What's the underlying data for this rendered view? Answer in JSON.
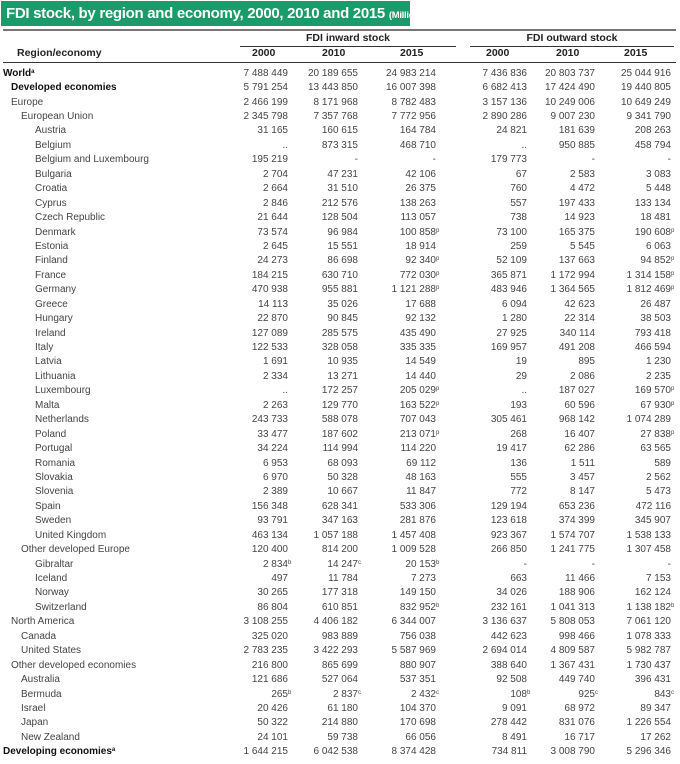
{
  "title": {
    "main": "FDI stock, by region and economy, 2000, 2010 and 2015",
    "unit": "(Millions of dollars)"
  },
  "header": {
    "region_label": "Region/economy",
    "inward_label": "FDI inward stock",
    "outward_label": "FDI outward stock",
    "years": [
      "2000",
      "2010",
      "2015",
      "2000",
      "2010",
      "2015"
    ]
  },
  "rows": [
    {
      "l": "World",
      "ls": "a",
      "d": 0,
      "b": true,
      "v": [
        "7 488 449",
        "20 189 655",
        "24 983 214",
        "7 436 836",
        "20 803 737",
        "25 044 916"
      ]
    },
    {
      "l": "Developed economies",
      "d": 1,
      "b": true,
      "v": [
        "5 791 254",
        "13 443 850",
        "16 007 398",
        "6 682 413",
        "17 424 490",
        "19 440 805"
      ]
    },
    {
      "l": "Europe",
      "d": 1,
      "v": [
        "2 466 199",
        "8 171 968",
        "8 782 483",
        "3 157 136",
        "10 249 006",
        "10 649 249"
      ]
    },
    {
      "l": "European Union",
      "d": 2,
      "v": [
        "2 345 798",
        "7 357 768",
        "7 772 956",
        "2 890 286",
        "9 007 230",
        "9 341 790"
      ]
    },
    {
      "l": "Austria",
      "d": 3,
      "v": [
        "31 165",
        "160 615",
        "164 784",
        "24 821",
        "181 639",
        "208 263"
      ]
    },
    {
      "l": "Belgium",
      "d": 3,
      "v": [
        "..",
        "873 315",
        "468 710",
        "..",
        "950 885",
        "458 794"
      ]
    },
    {
      "l": "Belgium and Luxembourg",
      "d": 3,
      "v": [
        "195 219",
        "-",
        "-",
        "179 773",
        "-",
        "-"
      ]
    },
    {
      "l": "Bulgaria",
      "d": 3,
      "v": [
        "2 704",
        "47 231",
        "42 106",
        "67",
        "2 583",
        "3 083"
      ]
    },
    {
      "l": "Croatia",
      "d": 3,
      "v": [
        "2 664",
        "31 510",
        "26 375",
        "760",
        "4 472",
        "5 448"
      ]
    },
    {
      "l": "Cyprus",
      "d": 3,
      "v": [
        "2 846",
        "212 576",
        "138 263",
        "557",
        "197 433",
        "133 134"
      ]
    },
    {
      "l": "Czech Republic",
      "d": 3,
      "v": [
        "21 644",
        "128 504",
        "113 057",
        "738",
        "14 923",
        "18 481"
      ]
    },
    {
      "l": "Denmark",
      "d": 3,
      "v": [
        "73 574",
        "96 984",
        "100 858",
        "73 100",
        "165 375",
        "190 608"
      ],
      "s": [
        "",
        "",
        "p",
        "",
        "",
        "p"
      ]
    },
    {
      "l": "Estonia",
      "d": 3,
      "v": [
        "2 645",
        "15 551",
        "18 914",
        "259",
        "5 545",
        "6 063"
      ]
    },
    {
      "l": "Finland",
      "d": 3,
      "v": [
        "24 273",
        "86 698",
        "92 340",
        "52 109",
        "137 663",
        "94 852"
      ],
      "s": [
        "",
        "",
        "p",
        "",
        "",
        "p"
      ]
    },
    {
      "l": "France",
      "d": 3,
      "v": [
        "184 215",
        "630 710",
        "772 030",
        "365 871",
        "1 172 994",
        "1 314 158"
      ],
      "s": [
        "",
        "",
        "p",
        "",
        "",
        "p"
      ]
    },
    {
      "l": "Germany",
      "d": 3,
      "v": [
        "470 938",
        "955 881",
        "1 121 288",
        "483 946",
        "1 364 565",
        "1 812 469"
      ],
      "s": [
        "",
        "",
        "p",
        "",
        "",
        "p"
      ]
    },
    {
      "l": "Greece",
      "d": 3,
      "v": [
        "14 113",
        "35 026",
        "17 688",
        "6 094",
        "42 623",
        "26 487"
      ]
    },
    {
      "l": "Hungary",
      "d": 3,
      "v": [
        "22 870",
        "90 845",
        "92 132",
        "1 280",
        "22 314",
        "38 503"
      ]
    },
    {
      "l": "Ireland",
      "d": 3,
      "v": [
        "127 089",
        "285 575",
        "435 490",
        "27 925",
        "340 114",
        "793 418"
      ]
    },
    {
      "l": "Italy",
      "d": 3,
      "v": [
        "122 533",
        "328 058",
        "335 335",
        "169 957",
        "491 208",
        "466 594"
      ]
    },
    {
      "l": "Latvia",
      "d": 3,
      "v": [
        "1 691",
        "10 935",
        "14 549",
        "19",
        "895",
        "1 230"
      ]
    },
    {
      "l": "Lithuania",
      "d": 3,
      "v": [
        "2 334",
        "13 271",
        "14 440",
        "29",
        "2 086",
        "2 235"
      ]
    },
    {
      "l": "Luxembourg",
      "d": 3,
      "v": [
        "..",
        "172 257",
        "205 029",
        "..",
        "187 027",
        "169 570"
      ],
      "s": [
        "",
        "",
        "p",
        "",
        "",
        "p"
      ]
    },
    {
      "l": "Malta",
      "d": 3,
      "v": [
        "2 263",
        "129 770",
        "163 522",
        "193",
        "60 596",
        "67 930"
      ],
      "s": [
        "",
        "",
        "p",
        "",
        "",
        "p"
      ]
    },
    {
      "l": "Netherlands",
      "d": 3,
      "v": [
        "243 733",
        "588 078",
        "707 043",
        "305 461",
        "968 142",
        "1 074 289"
      ]
    },
    {
      "l": "Poland",
      "d": 3,
      "v": [
        "33 477",
        "187 602",
        "213 071",
        "268",
        "16 407",
        "27 838"
      ],
      "s": [
        "",
        "",
        "p",
        "",
        "",
        "p"
      ]
    },
    {
      "l": "Portugal",
      "d": 3,
      "v": [
        "34 224",
        "114 994",
        "114 220",
        "19 417",
        "62 286",
        "63 565"
      ]
    },
    {
      "l": "Romania",
      "d": 3,
      "v": [
        "6 953",
        "68 093",
        "69 112",
        "136",
        "1 511",
        "589"
      ]
    },
    {
      "l": "Slovakia",
      "d": 3,
      "v": [
        "6 970",
        "50 328",
        "48 163",
        "555",
        "3 457",
        "2 562"
      ]
    },
    {
      "l": "Slovenia",
      "d": 3,
      "v": [
        "2 389",
        "10 667",
        "11 847",
        "772",
        "8 147",
        "5 473"
      ]
    },
    {
      "l": "Spain",
      "d": 3,
      "v": [
        "156 348",
        "628 341",
        "533 306",
        "129 194",
        "653 236",
        "472 116"
      ]
    },
    {
      "l": "Sweden",
      "d": 3,
      "v": [
        "93 791",
        "347 163",
        "281 876",
        "123 618",
        "374 399",
        "345 907"
      ]
    },
    {
      "l": "United Kingdom",
      "d": 3,
      "v": [
        "463 134",
        "1 057 188",
        "1 457 408",
        "923 367",
        "1 574 707",
        "1 538 133"
      ]
    },
    {
      "l": "Other developed Europe",
      "d": 2,
      "v": [
        "120 400",
        "814 200",
        "1 009 528",
        "266 850",
        "1 241 775",
        "1 307 458"
      ]
    },
    {
      "l": "Gibraltar",
      "d": 3,
      "v": [
        "2 834",
        "14 247",
        "20 153",
        "-",
        "-",
        "-"
      ],
      "s": [
        "b",
        "c",
        "b",
        "",
        "",
        ""
      ]
    },
    {
      "l": "Iceland",
      "d": 3,
      "v": [
        "497",
        "11 784",
        "7 273",
        "663",
        "11 466",
        "7 153"
      ]
    },
    {
      "l": "Norway",
      "d": 3,
      "v": [
        "30 265",
        "177 318",
        "149 150",
        "34 026",
        "188 906",
        "162 124"
      ]
    },
    {
      "l": "Switzerland",
      "d": 3,
      "v": [
        "86 804",
        "610 851",
        "832 952",
        "232 161",
        "1 041 313",
        "1 138 182"
      ],
      "s": [
        "",
        "",
        "b",
        "",
        "",
        "b"
      ]
    },
    {
      "l": "North America",
      "d": 1,
      "v": [
        "3 108 255",
        "4 406 182",
        "6 344 007",
        "3 136 637",
        "5 808 053",
        "7 061 120"
      ]
    },
    {
      "l": "Canada",
      "d": 2,
      "v": [
        "325 020",
        "983 889",
        "756 038",
        "442 623",
        "998 466",
        "1 078 333"
      ]
    },
    {
      "l": "United States",
      "d": 2,
      "v": [
        "2 783 235",
        "3 422 293",
        "5 587 969",
        "2 694 014",
        "4 809 587",
        "5 982 787"
      ]
    },
    {
      "l": "Other developed economies",
      "d": 1,
      "v": [
        "216 800",
        "865 699",
        "880 907",
        "388 640",
        "1 367 431",
        "1 730 437"
      ]
    },
    {
      "l": "Australia",
      "d": 2,
      "v": [
        "121 686",
        "527 064",
        "537 351",
        "92 508",
        "449 740",
        "396 431"
      ]
    },
    {
      "l": "Bermuda",
      "d": 2,
      "v": [
        "265",
        "2 837",
        "2 432",
        "108",
        "925",
        "843"
      ],
      "s": [
        "b",
        "c",
        "c",
        "b",
        "c",
        "c"
      ]
    },
    {
      "l": "Israel",
      "d": 2,
      "v": [
        "20 426",
        "61 180",
        "104 370",
        "9 091",
        "68 972",
        "89 347"
      ]
    },
    {
      "l": "Japan",
      "d": 2,
      "v": [
        "50 322",
        "214 880",
        "170 698",
        "278 442",
        "831 076",
        "1 226 554"
      ]
    },
    {
      "l": "New Zealand",
      "d": 2,
      "v": [
        "24 101",
        "59 738",
        "66 056",
        "8 491",
        "16 717",
        "17 262"
      ]
    },
    {
      "l": "Developing economies",
      "ls": "a",
      "d": 0,
      "b": true,
      "v": [
        "1 644 215",
        "6 042 538",
        "8 374 428",
        "734 811",
        "3 008 790",
        "5 296 346"
      ]
    }
  ]
}
